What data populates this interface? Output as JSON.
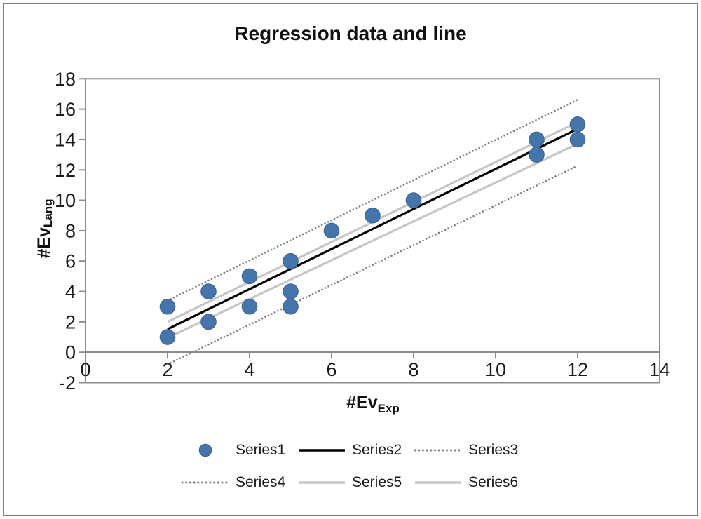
{
  "frame": {
    "border_color": "#808080",
    "background": "#FFFFFF"
  },
  "chart_data": {
    "type": "scatter",
    "title": "Regression data and line",
    "x_axis": {
      "label_base": "#Ev",
      "label_sub": "Exp",
      "min": 0,
      "max": 14,
      "ticks": [
        0,
        2,
        4,
        6,
        8,
        10,
        12,
        14
      ]
    },
    "y_axis": {
      "label_base": "#Ev",
      "label_sub": "Lang",
      "min": -2,
      "max": 18,
      "ticks": [
        -2,
        0,
        2,
        4,
        6,
        8,
        10,
        12,
        14,
        16,
        18
      ]
    },
    "grid": false,
    "axis_color": "#8C8C8C",
    "legend_position": "bottom",
    "legend_rows": [
      [
        "Series1",
        "Series2",
        "Series3"
      ],
      [
        "Series4",
        "Series5",
        "Series6"
      ]
    ],
    "series": [
      {
        "name": "Series1",
        "kind": "scatter",
        "marker": "circle",
        "color": "#4675AB",
        "marker_border": "#3A618F",
        "points": [
          [
            2,
            1
          ],
          [
            2,
            3
          ],
          [
            3,
            2
          ],
          [
            3,
            4
          ],
          [
            4,
            3
          ],
          [
            4,
            5
          ],
          [
            5,
            3
          ],
          [
            5,
            4
          ],
          [
            5,
            6
          ],
          [
            6,
            8
          ],
          [
            7,
            9
          ],
          [
            8,
            10
          ],
          [
            11,
            13
          ],
          [
            11,
            14
          ],
          [
            12,
            14
          ],
          [
            12,
            15
          ]
        ]
      },
      {
        "name": "Series2",
        "kind": "line",
        "style": "solid",
        "color": "#000000",
        "width": 3.2,
        "points": [
          [
            2,
            1.52
          ],
          [
            12,
            14.7
          ]
        ]
      },
      {
        "name": "Series3",
        "kind": "line",
        "style": "dotted",
        "color": "#7F7F7F",
        "width": 2.6,
        "points": [
          [
            2,
            3.4
          ],
          [
            12,
            16.62
          ]
        ]
      },
      {
        "name": "Series4",
        "kind": "line",
        "style": "dotted",
        "color": "#7F7F7F",
        "width": 2.6,
        "points": [
          [
            2,
            -0.8
          ],
          [
            12,
            12.28
          ]
        ]
      },
      {
        "name": "Series5",
        "kind": "line",
        "style": "solid",
        "color": "#C6C6C6",
        "width": 3.2,
        "points": [
          [
            2,
            2.0
          ],
          [
            12,
            15.15
          ]
        ]
      },
      {
        "name": "Series6",
        "kind": "line",
        "style": "solid",
        "color": "#C6C6C6",
        "width": 3.2,
        "points": [
          [
            2,
            0.95
          ],
          [
            12,
            13.72
          ]
        ]
      }
    ]
  }
}
